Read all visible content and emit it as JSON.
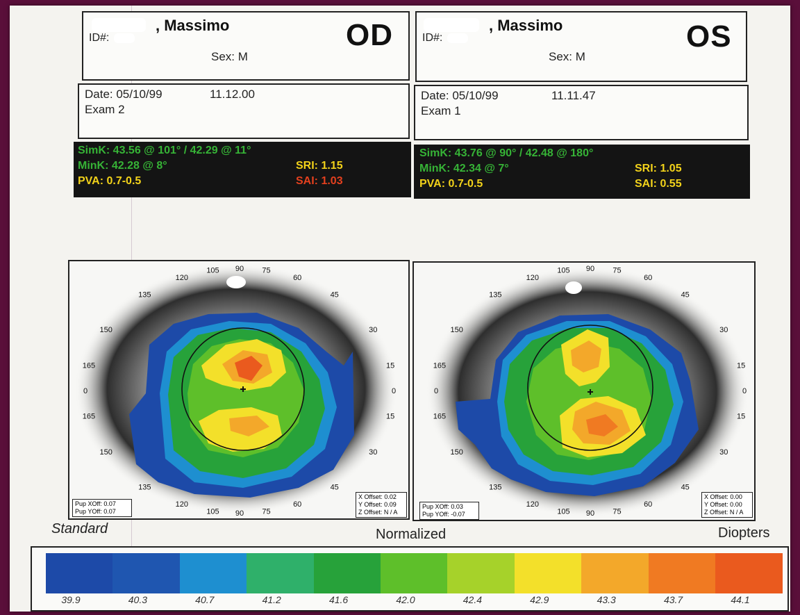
{
  "report": {
    "scale_label": "Standard",
    "mode_label": "Normalized",
    "units_label": "Diopters"
  },
  "od": {
    "name": ", Massimo",
    "id_label": "ID#:",
    "sex": "Sex: M",
    "eye": "OD",
    "date": "Date: 05/10/99",
    "time": "11.12.00",
    "exam": "Exam 2",
    "simk": "SimK: 43.56 @ 101°  / 42.29 @  11°",
    "mink": "MinK: 42.28 @    8°",
    "pva": "PVA: 0.7-0.5",
    "sri": "SRI: 1.15",
    "sai": "SAI: 1.03",
    "pup_x": "Pup XOff: 0.07",
    "pup_y": "Pup YOff: 0.07",
    "x_offset": "X Offset: 0.02",
    "y_offset": "Y Offset: 0.09",
    "z_offset": "Z Offset: N / A"
  },
  "os": {
    "name": ", Massimo",
    "id_label": "ID#:",
    "sex": "Sex: M",
    "eye": "OS",
    "date": "Date: 05/10/99",
    "time": "11.11.47",
    "exam": "Exam 1",
    "simk": "SimK: 43.76 @  90°   / 42.48 @ 180°",
    "mink": "MinK: 42.34 @    7°",
    "pva": "PVA: 0.7-0.5",
    "sri": "SRI: 1.05",
    "sai": "SAI: 0.55",
    "pup_x": "Pup XOff: 0.03",
    "pup_y": "Pup YOff: -0.07",
    "x_offset": "X Offset: 0.00",
    "y_offset": "Y Offset: 0.00",
    "z_offset": "Z Offset: N / A"
  },
  "od_axis_labels": [
    "105",
    "90",
    "75",
    "120",
    "60",
    "135",
    "45",
    "150",
    "30",
    "165",
    "15",
    "0",
    "0",
    "15",
    "165",
    "30",
    "150",
    "45",
    "135",
    "60",
    "120",
    "75",
    "90",
    "105"
  ],
  "os_axis_labels": [
    "105",
    "90",
    "75",
    "120",
    "60",
    "135",
    "45",
    "150",
    "30",
    "165",
    "15",
    "0",
    "0",
    "15",
    "165",
    "30",
    "150",
    "45",
    "135",
    "60",
    "120",
    "75",
    "90",
    "105"
  ],
  "colors": {
    "simk_text": "#36b336",
    "yellow_text": "#f2d21a",
    "sai_red": "#e4401e"
  },
  "color_scale": [
    {
      "value": "39.9",
      "color": "#1d4aa8"
    },
    {
      "value": "40.3",
      "color": "#1f56b0"
    },
    {
      "value": "40.7",
      "color": "#1e8fd0"
    },
    {
      "value": "41.2",
      "color": "#2fb06a"
    },
    {
      "value": "41.6",
      "color": "#27a23a"
    },
    {
      "value": "42.0",
      "color": "#5ebf2a"
    },
    {
      "value": "42.4",
      "color": "#a6d22a"
    },
    {
      "value": "42.9",
      "color": "#f3e02a"
    },
    {
      "value": "43.3",
      "color": "#f3a82a"
    },
    {
      "value": "43.7",
      "color": "#f07a22"
    },
    {
      "value": "44.1",
      "color": "#ea5a1e"
    }
  ]
}
